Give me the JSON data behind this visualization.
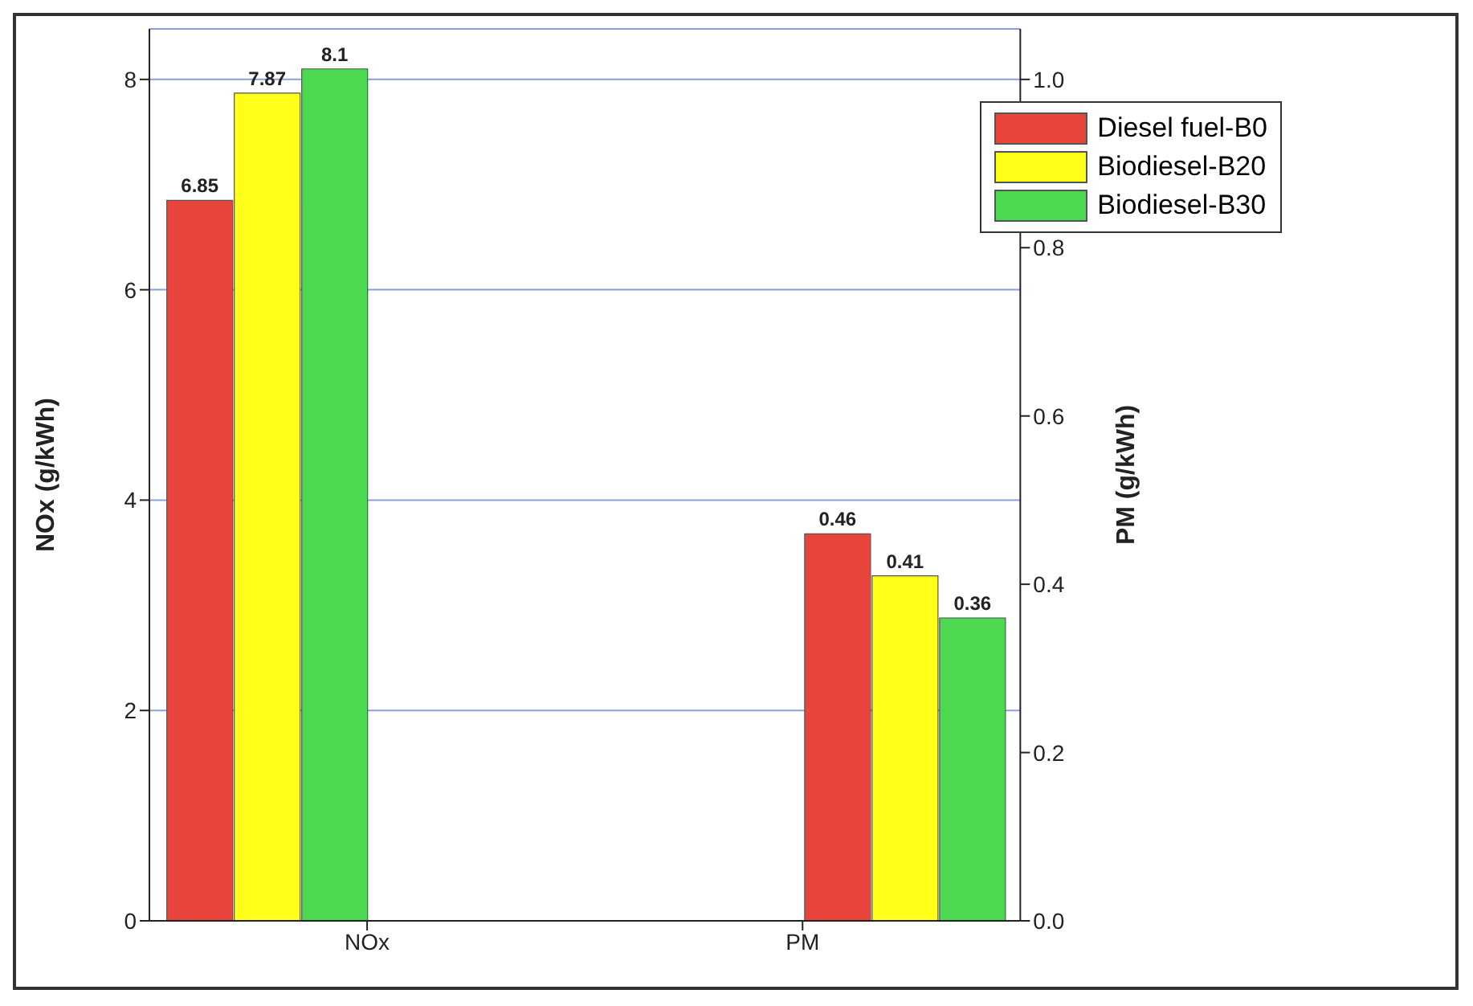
{
  "chart_data": {
    "type": "bar",
    "ylabel": "NOx (g/kWh)",
    "y2label": "PM (g/kWh)",
    "categories": [
      "NOx",
      "PM"
    ],
    "series": [
      {
        "name": "Diesel fuel-B0",
        "color": "#e8463c",
        "values": [
          6.85,
          null
        ]
      },
      {
        "name": "Biodiesel-B20",
        "color": "#ffff1a",
        "values": [
          7.87,
          null
        ]
      },
      {
        "name": "Biodiesel-B30",
        "color": "#4cd850",
        "values": [
          8.1,
          null
        ]
      },
      {
        "color": "#e8463c",
        "values": [
          null,
          0.46
        ],
        "axis": "y2"
      },
      {
        "color": "#ffff1a",
        "values": [
          null,
          0.41
        ],
        "axis": "y2"
      },
      {
        "color": "#4cd850",
        "values": [
          null,
          0.36
        ],
        "axis": "y2"
      }
    ],
    "ylim": [
      0,
      8.48
    ],
    "yticks": [
      0,
      2,
      4,
      6,
      8
    ],
    "y2lim": [
      0,
      1.06
    ],
    "y2ticks": [
      {
        "value": 0,
        "label": "0.0"
      },
      0.2,
      0.4,
      0.6,
      0.8,
      {
        "value": 1,
        "label": "1.0"
      }
    ],
    "data_labels": true,
    "grid": "y",
    "legend": "top right"
  }
}
